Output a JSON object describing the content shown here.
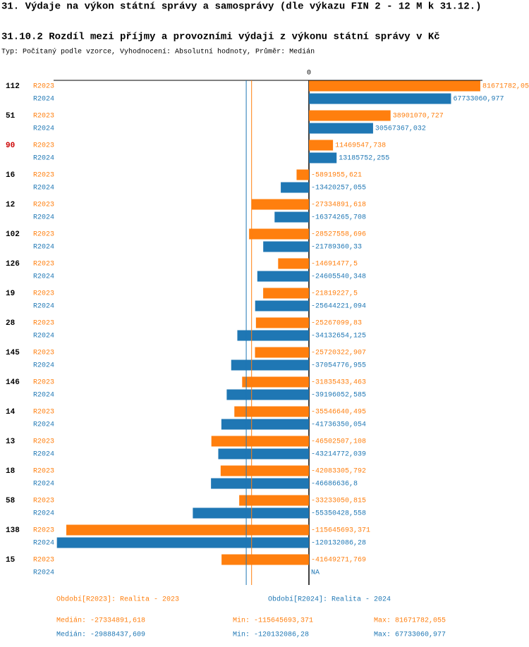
{
  "chart_data": {
    "type": "grouped-hbar",
    "title": "31. Výdaje na výkon státní správy a samosprávy (dle výkazu FIN 2 - 12 M k 31.12.)",
    "subtitle": "31.10.2 Rozdíl mezi příjmy a provozními výdaji z výkonu státní správy v Kč",
    "note": "Typ: Počítaný podle vzorce, Vyhodnocení: Absolutní hodnoty, Průměr: Medián",
    "categories": [
      "112",
      "51",
      "90",
      "16",
      "12",
      "102",
      "126",
      "19",
      "28",
      "145",
      "146",
      "14",
      "13",
      "18",
      "58",
      "138",
      "15"
    ],
    "highlighted_categories": [
      "90"
    ],
    "highlight_color": "#cc0000",
    "xlim": [
      -121700000,
      82700000
    ],
    "xticks": [
      0
    ],
    "series": [
      {
        "name": "R2023",
        "legend": "Období[R2023]: Realita - 2023",
        "color": "#ff7f0e",
        "values": [
          81671782.05,
          38901070.727,
          11469547.738,
          -5891955.621,
          -27334891.618,
          -28527558.696,
          -14691477.5,
          -21819227.5,
          -25267099.83,
          -25720322.907,
          -31835433.463,
          -35546640.495,
          -46502507.108,
          -42083305.792,
          -33233050.815,
          -115645693.371,
          -41649271.769
        ],
        "value_labels": [
          "81671782,05",
          "38901070,727",
          "11469547,738",
          "-5891955,621",
          "-27334891,618",
          "-28527558,696",
          "-14691477,5",
          "-21819227,5",
          "-25267099,83",
          "-25720322,907",
          "-31835433,463",
          "-35546640,495",
          "-46502507,108",
          "-42083305,792",
          "-33233050,815",
          "-115645693,371",
          "-41649271,769"
        ],
        "median": -27334891.618,
        "stats": [
          "Medián: -27334891,618",
          "Min: -115645693,371",
          "Max: 81671782,055"
        ]
      },
      {
        "name": "R2024",
        "legend": "Období[R2024]: Realita - 2024",
        "color": "#1f77b4",
        "values": [
          67733060.977,
          30567367.032,
          13185752.255,
          -13420257.055,
          -16374265.708,
          -21789360.33,
          -24605540.348,
          -25644221.094,
          -34132654.125,
          -37054776.955,
          -39196052.585,
          -41736350.054,
          -43214772.039,
          -46686636.8,
          -55350428.558,
          -120132086.28,
          null
        ],
        "value_labels": [
          "67733060,977",
          "30567367,032",
          "13185752,255",
          "-13420257,055",
          "-16374265,708",
          "-21789360,33",
          "-24605540,348",
          "-25644221,094",
          "-34132654,125",
          "-37054776,955",
          "-39196052,585",
          "-41736350,054",
          "-43214772,039",
          "-46686636,8",
          "-55350428,558",
          "-120132086,28",
          "NA"
        ],
        "median": -29888437.609,
        "stats": [
          "Medián: -29888437,609",
          "Min: -120132086,28",
          "Max: 67733060,977"
        ]
      }
    ]
  }
}
